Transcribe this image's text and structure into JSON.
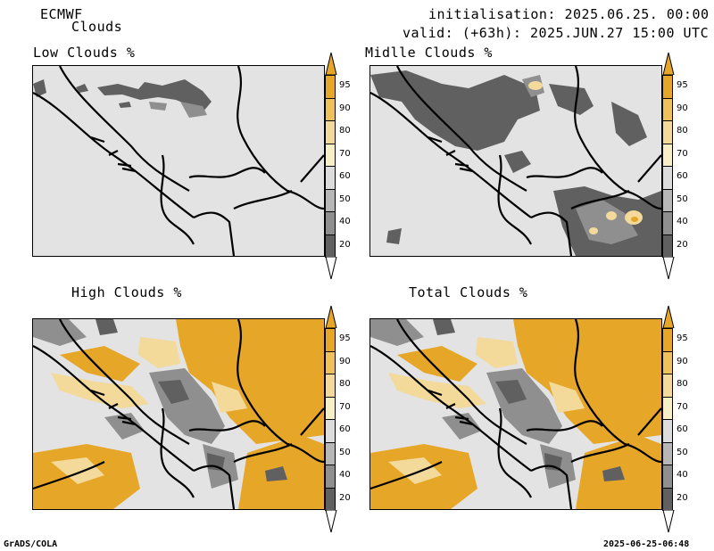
{
  "header": {
    "model": "ECMWF",
    "product": "Clouds",
    "initialisation": "initialisation: 2025.06.25. 00:00 UTC",
    "valid": "valid: (+63h): 2025.JUN.27 15:00 UTC"
  },
  "panels": [
    {
      "title": "Low Clouds %"
    },
    {
      "title": "Midlle Clouds %"
    },
    {
      "title": "High Clouds %"
    },
    {
      "title": "Total Clouds %"
    }
  ],
  "colorbar": {
    "labels": [
      "95",
      "90",
      "80",
      "70",
      "60",
      "50",
      "40",
      "20"
    ],
    "colors": {
      "c95": "#e6a628",
      "c90": "#efc15a",
      "c80": "#f3d99a",
      "c70": "#f6f0c4",
      "c60": "#dcdcdc",
      "c50": "#b7b7b7",
      "c40": "#8f8f8f",
      "c20": "#606060",
      "bottom": "#ffffff"
    }
  },
  "footer": {
    "left": "GrADS/COLA",
    "right": "2025-06-25-06:48"
  }
}
